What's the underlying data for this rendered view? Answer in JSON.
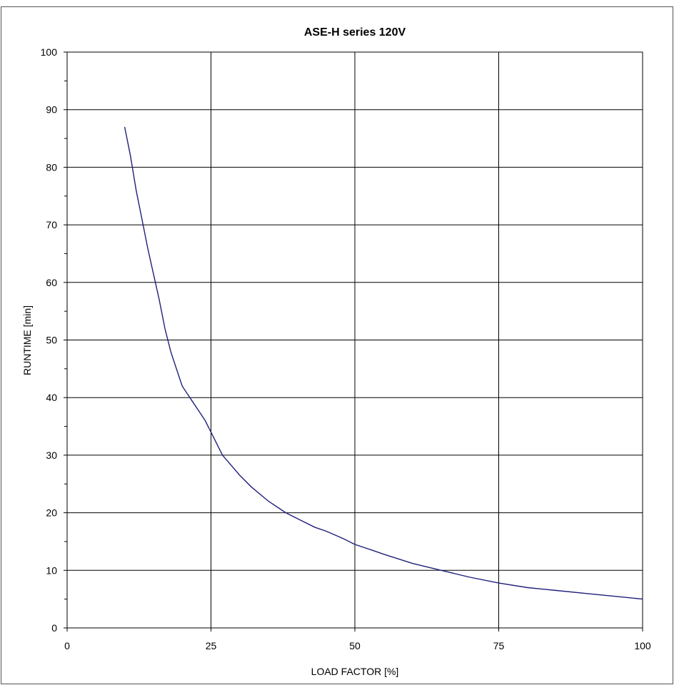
{
  "chart_data": {
    "type": "line",
    "title": "ASE-H series 120V",
    "xlabel": "LOAD FACTOR [%]",
    "ylabel": "RUNTIME [min]",
    "xlim": [
      0,
      100
    ],
    "ylim": [
      0,
      100
    ],
    "xticks": [
      0,
      25,
      50,
      75,
      100
    ],
    "yticks": [
      0,
      10,
      20,
      30,
      40,
      50,
      60,
      70,
      80,
      90,
      100
    ],
    "grid": true,
    "line_color": "#1f1f7a",
    "series": [
      {
        "x": [
          10,
          11,
          12,
          13,
          14,
          15,
          16,
          17,
          18,
          19,
          20,
          22,
          23,
          24,
          25,
          27,
          30,
          32,
          35,
          38,
          40,
          43,
          45,
          48,
          50,
          53,
          55,
          60,
          65,
          70,
          75,
          80,
          85,
          90,
          95,
          100
        ],
        "y": [
          87,
          82,
          76,
          71,
          66,
          61.5,
          57,
          52,
          48,
          45,
          42,
          39,
          37.5,
          36,
          34,
          30,
          26.5,
          24.5,
          22,
          20,
          19,
          17.5,
          16.8,
          15.5,
          14.5,
          13.5,
          12.8,
          11.2,
          10,
          8.8,
          7.8,
          7,
          6.5,
          6,
          5.5,
          5
        ]
      }
    ]
  }
}
